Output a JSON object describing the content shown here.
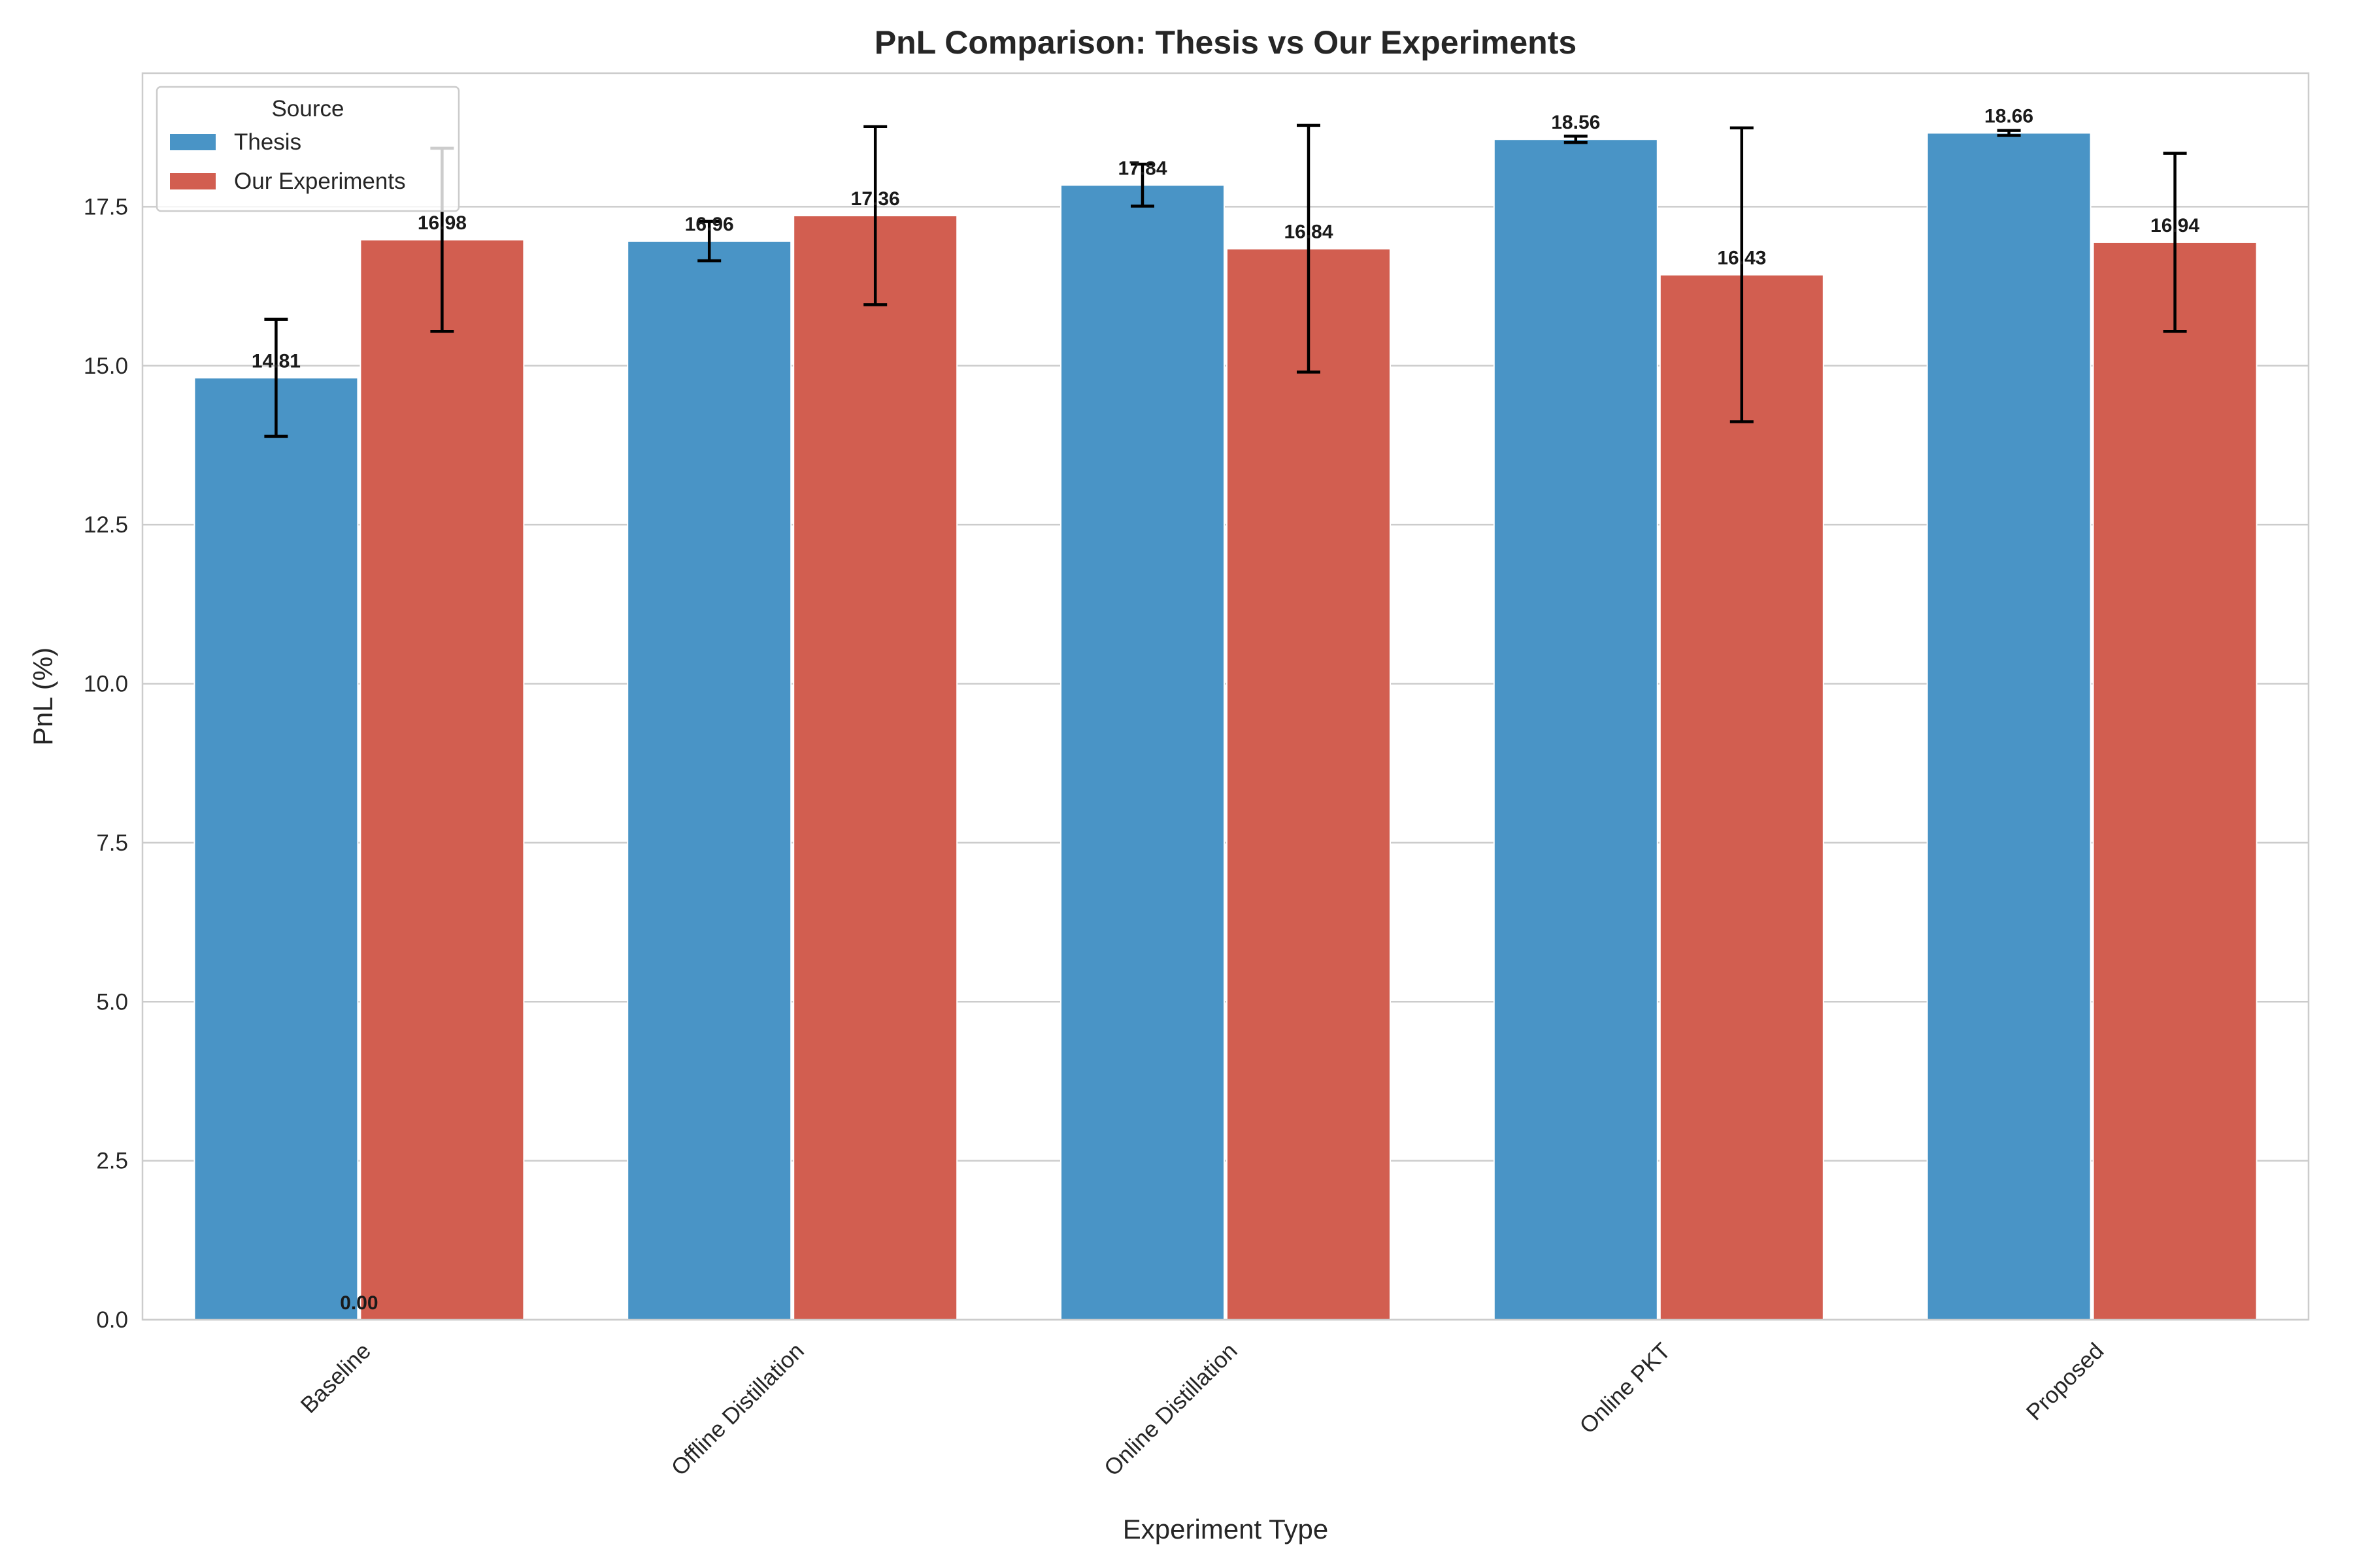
{
  "chart_data": {
    "type": "bar",
    "title": "PnL Comparison: Thesis vs Our Experiments",
    "xlabel": "Experiment Type",
    "ylabel": "PnL (%)",
    "categories": [
      "Baseline",
      "Offline Distillation",
      "Online Distillation",
      "Online PKT",
      "Proposed"
    ],
    "series": [
      {
        "name": "Thesis",
        "color": "#4994C6",
        "values": [
          14.81,
          16.96,
          17.84,
          18.56,
          18.66
        ],
        "errors": [
          0.92,
          0.31,
          0.33,
          0.05,
          0.04
        ],
        "value_labels": [
          "14.81",
          "16.96",
          "17.84",
          "18.56",
          "18.66"
        ]
      },
      {
        "name": "Our Experiments",
        "color": "#D25E50",
        "values": [
          16.98,
          17.36,
          16.84,
          16.43,
          16.94
        ],
        "errors": [
          1.44,
          1.4,
          1.94,
          2.31,
          1.4
        ],
        "value_labels": [
          "16.98",
          "17.36",
          "16.84",
          "16.43",
          "16.94"
        ]
      }
    ],
    "extra_labels": [
      {
        "category": "Baseline",
        "text": "0.00",
        "y": 0.0
      }
    ],
    "ylim": [
      0,
      19.6
    ],
    "yticks": [
      0.0,
      2.5,
      5.0,
      7.5,
      10.0,
      12.5,
      15.0,
      17.5
    ],
    "ytick_labels": [
      "0.0",
      "2.5",
      "5.0",
      "7.5",
      "10.0",
      "12.5",
      "15.0",
      "17.5"
    ],
    "grid": true,
    "legend": {
      "title": "Source",
      "placement": "top-left"
    }
  }
}
